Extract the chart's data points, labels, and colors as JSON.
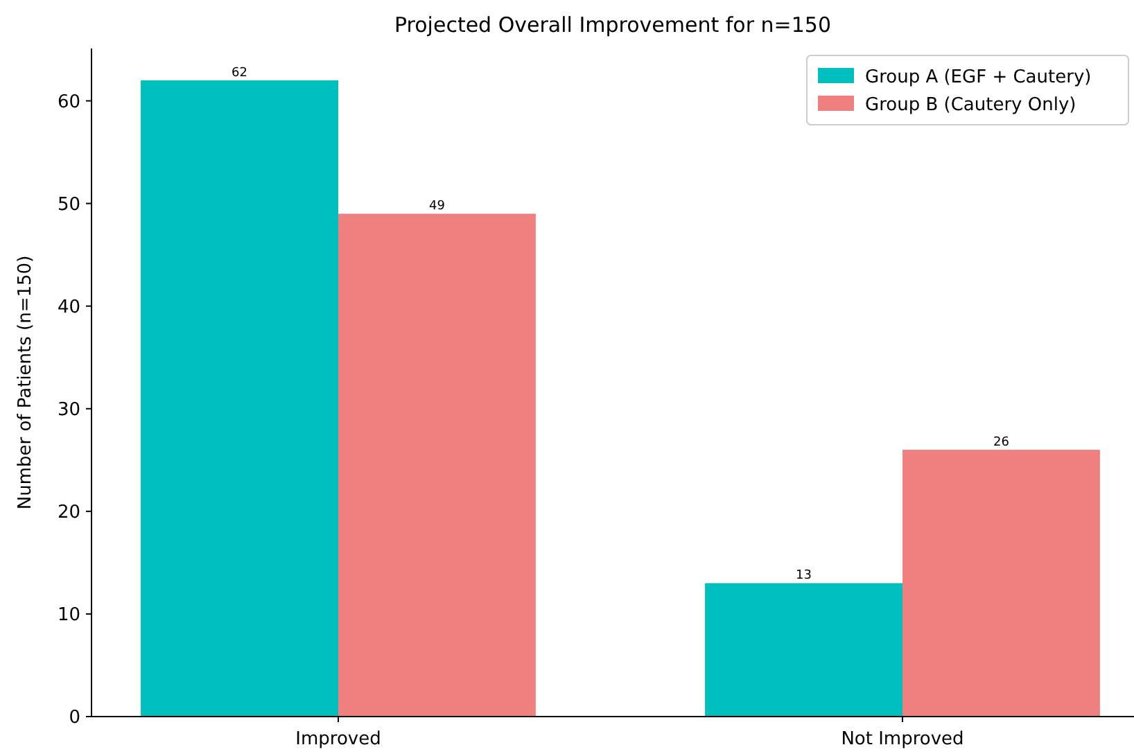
{
  "chart_data": {
    "type": "bar",
    "title": "Projected Overall Improvement for n=150",
    "ylabel": "Number of Patients (n=150)",
    "categories": [
      "Improved",
      "Not Improved"
    ],
    "series": [
      {
        "name": "Group A (EGF + Cautery)",
        "color": "#00bfbf",
        "values": [
          62,
          13
        ]
      },
      {
        "name": "Group B (Cautery Only)",
        "color": "#f08080",
        "values": [
          49,
          26
        ]
      }
    ],
    "ylim": [
      0,
      65.1
    ],
    "yticks": [
      0,
      10,
      20,
      30,
      40,
      50,
      60
    ],
    "data_labels": true,
    "legend": "top right",
    "grid": false
  }
}
